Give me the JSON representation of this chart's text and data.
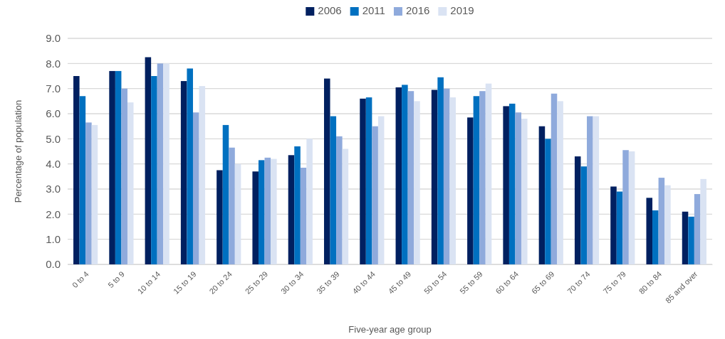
{
  "chart_data": {
    "type": "bar",
    "xlabel": "Five-year age group",
    "ylabel": "Percentage of population",
    "categories": [
      "0 to 4",
      "5 to 9",
      "10 to 14",
      "15 to 19",
      "20 to 24",
      "25 to 29",
      "30 to 34",
      "35 to 39",
      "40 to 44",
      "45 to 49",
      "50 to 54",
      "55 to 59",
      "60 to 64",
      "65 to 69",
      "70 to 74",
      "75 to 79",
      "80 to 84",
      "85 and over"
    ],
    "series": [
      {
        "name": "2006",
        "color": "#002060",
        "values": [
          7.5,
          7.7,
          8.25,
          7.3,
          3.75,
          3.7,
          4.35,
          7.4,
          6.6,
          7.05,
          6.95,
          5.85,
          6.3,
          5.5,
          4.3,
          3.1,
          2.65,
          2.1
        ]
      },
      {
        "name": "2011",
        "color": "#0070c0",
        "values": [
          6.7,
          7.7,
          7.5,
          7.8,
          5.55,
          4.15,
          4.7,
          5.9,
          6.65,
          7.15,
          7.45,
          6.7,
          6.4,
          5.0,
          3.9,
          2.9,
          2.15,
          1.9
        ]
      },
      {
        "name": "2016",
        "color": "#8faadc",
        "values": [
          5.65,
          7.0,
          8.0,
          6.05,
          4.65,
          4.25,
          3.85,
          5.1,
          5.5,
          6.9,
          7.0,
          6.9,
          6.05,
          6.8,
          5.9,
          4.55,
          3.45,
          2.8
        ]
      },
      {
        "name": "2019",
        "color": "#dae3f3",
        "values": [
          5.55,
          6.45,
          8.0,
          7.1,
          4.0,
          4.2,
          5.0,
          4.6,
          5.9,
          6.5,
          6.65,
          7.2,
          5.8,
          6.5,
          5.9,
          4.5,
          3.15,
          3.4
        ]
      }
    ],
    "ylim": [
      0,
      9
    ],
    "yticks": [
      {
        "value": 0,
        "label": "0.0"
      },
      {
        "value": 1,
        "label": "1.0"
      },
      {
        "value": 2,
        "label": "2.0"
      },
      {
        "value": 3,
        "label": "3.0"
      },
      {
        "value": 4,
        "label": "4.0"
      },
      {
        "value": 5,
        "label": "5.0"
      },
      {
        "value": 6,
        "label": "6.0"
      },
      {
        "value": 7,
        "label": "7.0"
      },
      {
        "value": 8,
        "label": "8.0"
      },
      {
        "value": 9,
        "label": "9.0"
      }
    ],
    "grid": "y",
    "legend": "top"
  }
}
